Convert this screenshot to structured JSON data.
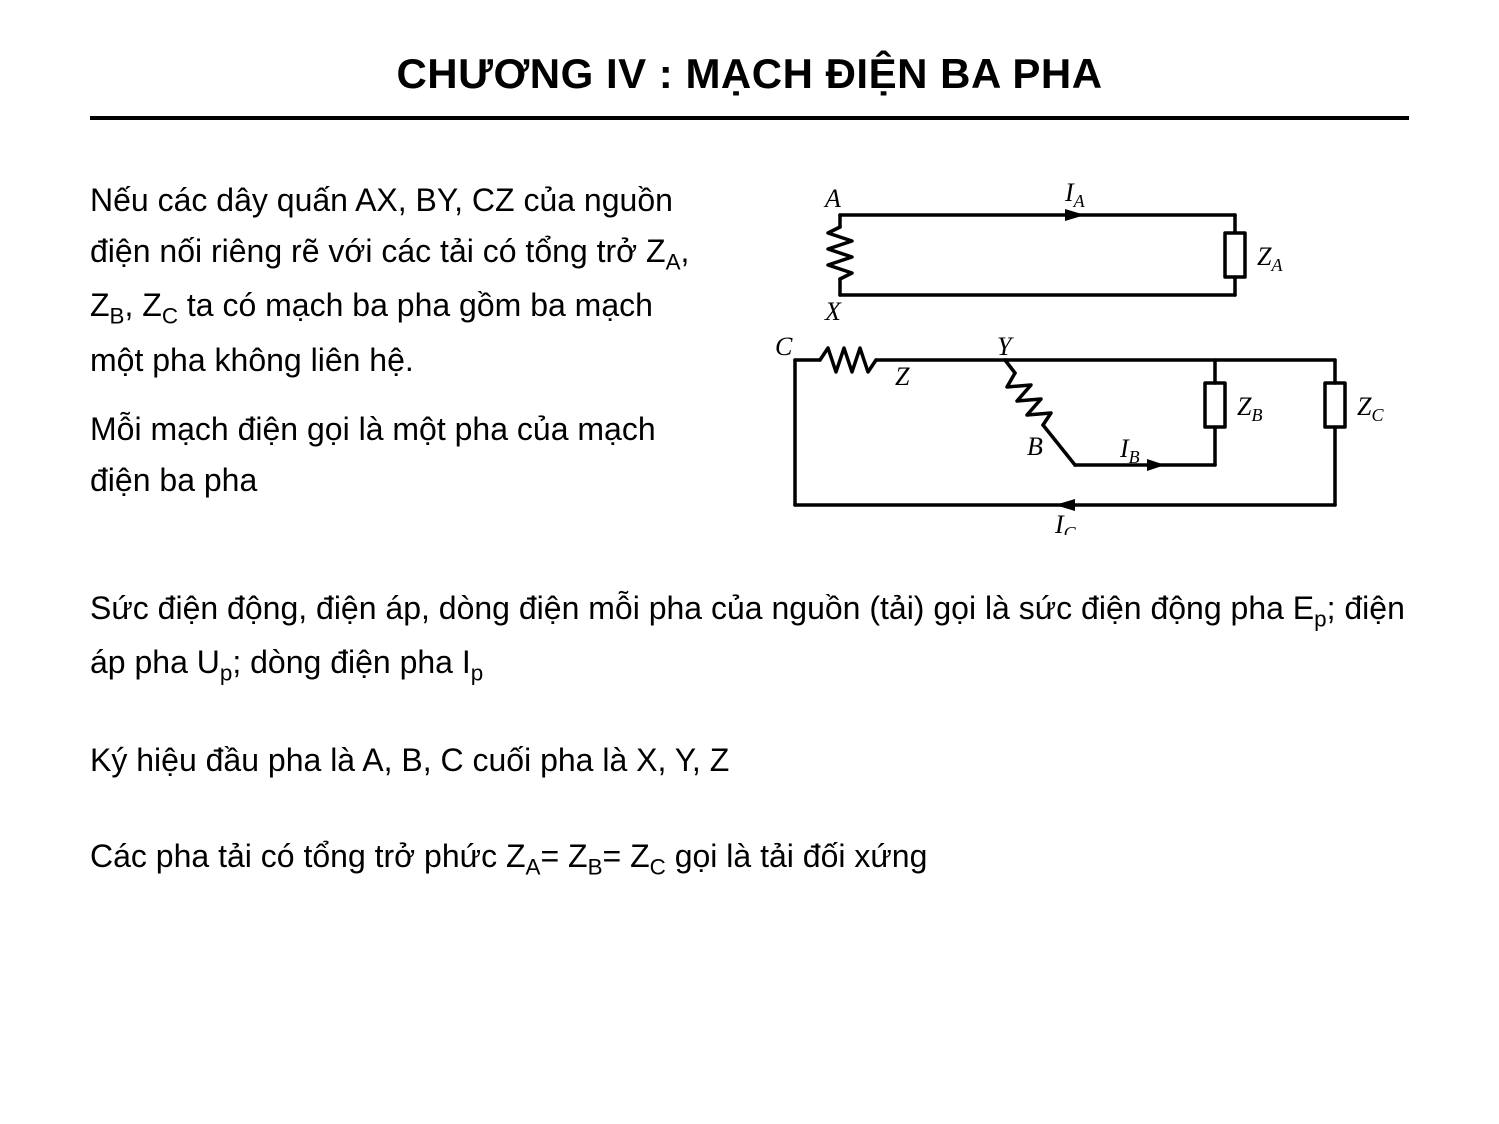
{
  "title": "CHƯƠNG IV : MẠCH ĐIỆN BA PHA",
  "para1_html": "Nếu các dây quấn AX, BY, CZ của nguồn điện nối riêng rẽ với các tải có tổng trở Z<sub>A</sub>, Z<sub>B</sub>, Z<sub>C</sub> ta có mạch ba pha gồm ba mạch một pha không liên hệ.",
  "para2_html": "Mỗi mạch điện gọi là một pha của mạch điện ba pha",
  "para3_html": "Sức điện động, điện áp, dòng điện mỗi pha của nguồn (tải) gọi là sức điện động pha E<sub>p</sub>; điện áp pha U<sub>p</sub>; dòng điện pha I<sub>p</sub>",
  "para4_html": "Ký hiệu đầu pha là A, B, C cuối pha là X, Y, Z",
  "para5_html": "Các pha tải có tổng trở phức Z<sub>A</sub>= Z<sub>B</sub>= Z<sub>C</sub> gọi là tải đối xứng",
  "diagram": {
    "stroke": "#000000",
    "stroke_width": 3,
    "labels": {
      "A": "A",
      "X": "X",
      "Y": "Y",
      "Z": "Z",
      "B": "B",
      "C": "C",
      "IA": "I",
      "IA_sub": "A",
      "IB": "I",
      "IB_sub": "B",
      "IC": "I",
      "IC_sub": "C",
      "ZA": "Z",
      "ZA_sub": "A",
      "ZB": "Z",
      "ZB_sub": "B",
      "ZC": "Z",
      "ZC_sub": "C"
    }
  }
}
